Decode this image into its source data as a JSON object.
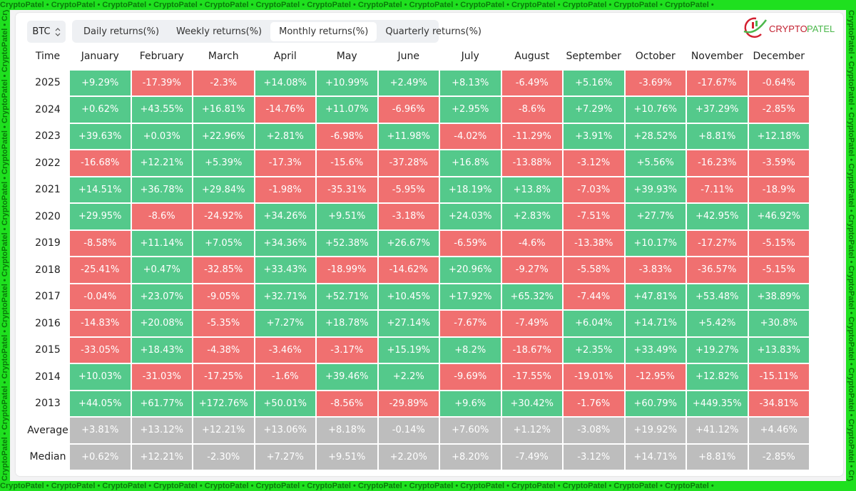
{
  "watermark": "CryptoPatel • CryptoPatel • CryptoPatel • CryptoPatel • CryptoPatel • CryptoPatel • CryptoPatel • CryptoPatel • CryptoPatel • CryptoPatel • CryptoPatel • CryptoPatel • CryptoPatel • CryptoPatel •",
  "asset": {
    "label": "BTC",
    "icon": "chevron-up-down-icon"
  },
  "tabs": [
    {
      "label": "Daily returns(%)"
    },
    {
      "label": "Weekly returns(%)"
    },
    {
      "label": "Monthly returns(%)",
      "active": true
    },
    {
      "label": "Quarterly returns(%)"
    }
  ],
  "colors": {
    "positive": "#54c98b",
    "negative": "#f07070",
    "summary": "#bdbdbd"
  },
  "table": {
    "headers": [
      "Time",
      "January",
      "February",
      "March",
      "April",
      "May",
      "June",
      "July",
      "August",
      "September",
      "October",
      "November",
      "December"
    ],
    "rows": [
      {
        "label": "2025",
        "values": [
          "+9.29%",
          "-17.39%",
          "-2.3%",
          "+14.08%",
          "+10.99%",
          "+2.49%",
          "+8.13%",
          "-6.49%",
          "+5.16%",
          "-3.69%",
          "-17.67%",
          "-0.64%"
        ]
      },
      {
        "label": "2024",
        "values": [
          "+0.62%",
          "+43.55%",
          "+16.81%",
          "-14.76%",
          "+11.07%",
          "-6.96%",
          "+2.95%",
          "-8.6%",
          "+7.29%",
          "+10.76%",
          "+37.29%",
          "-2.85%"
        ]
      },
      {
        "label": "2023",
        "values": [
          "+39.63%",
          "+0.03%",
          "+22.96%",
          "+2.81%",
          "-6.98%",
          "+11.98%",
          "-4.02%",
          "-11.29%",
          "+3.91%",
          "+28.52%",
          "+8.81%",
          "+12.18%"
        ]
      },
      {
        "label": "2022",
        "values": [
          "-16.68%",
          "+12.21%",
          "+5.39%",
          "-17.3%",
          "-15.6%",
          "-37.28%",
          "+16.8%",
          "-13.88%",
          "-3.12%",
          "+5.56%",
          "-16.23%",
          "-3.59%"
        ]
      },
      {
        "label": "2021",
        "values": [
          "+14.51%",
          "+36.78%",
          "+29.84%",
          "-1.98%",
          "-35.31%",
          "-5.95%",
          "+18.19%",
          "+13.8%",
          "-7.03%",
          "+39.93%",
          "-7.11%",
          "-18.9%"
        ]
      },
      {
        "label": "2020",
        "values": [
          "+29.95%",
          "-8.6%",
          "-24.92%",
          "+34.26%",
          "+9.51%",
          "-3.18%",
          "+24.03%",
          "+2.83%",
          "-7.51%",
          "+27.7%",
          "+42.95%",
          "+46.92%"
        ]
      },
      {
        "label": "2019",
        "values": [
          "-8.58%",
          "+11.14%",
          "+7.05%",
          "+34.36%",
          "+52.38%",
          "+26.67%",
          "-6.59%",
          "-4.6%",
          "-13.38%",
          "+10.17%",
          "-17.27%",
          "-5.15%"
        ]
      },
      {
        "label": "2018",
        "values": [
          "-25.41%",
          "+0.47%",
          "-32.85%",
          "+33.43%",
          "-18.99%",
          "-14.62%",
          "+20.96%",
          "-9.27%",
          "-5.58%",
          "-3.83%",
          "-36.57%",
          "-5.15%"
        ]
      },
      {
        "label": "2017",
        "values": [
          "-0.04%",
          "+23.07%",
          "-9.05%",
          "+32.71%",
          "+52.71%",
          "+10.45%",
          "+17.92%",
          "+65.32%",
          "-7.44%",
          "+47.81%",
          "+53.48%",
          "+38.89%"
        ]
      },
      {
        "label": "2016",
        "values": [
          "-14.83%",
          "+20.08%",
          "-5.35%",
          "+7.27%",
          "+18.78%",
          "+27.14%",
          "-7.67%",
          "-7.49%",
          "+6.04%",
          "+14.71%",
          "+5.42%",
          "+30.8%"
        ]
      },
      {
        "label": "2015",
        "values": [
          "-33.05%",
          "+18.43%",
          "-4.38%",
          "-3.46%",
          "-3.17%",
          "+15.19%",
          "+8.2%",
          "-18.67%",
          "+2.35%",
          "+33.49%",
          "+19.27%",
          "+13.83%"
        ]
      },
      {
        "label": "2014",
        "values": [
          "+10.03%",
          "-31.03%",
          "-17.25%",
          "-1.6%",
          "+39.46%",
          "+2.2%",
          "-9.69%",
          "-17.55%",
          "-19.01%",
          "-12.95%",
          "+12.82%",
          "-15.11%"
        ]
      },
      {
        "label": "2013",
        "values": [
          "+44.05%",
          "+61.77%",
          "+172.76%",
          "+50.01%",
          "-8.56%",
          "-29.89%",
          "+9.6%",
          "+30.42%",
          "-1.76%",
          "+60.79%",
          "+449.35%",
          "-34.81%"
        ]
      }
    ],
    "summary": [
      {
        "label": "Average",
        "values": [
          "+3.81%",
          "+13.12%",
          "+12.21%",
          "+13.06%",
          "+8.18%",
          "-0.14%",
          "+7.60%",
          "+1.12%",
          "-3.08%",
          "+19.92%",
          "+41.12%",
          "+4.46%"
        ]
      },
      {
        "label": "Median",
        "values": [
          "+0.62%",
          "+12.21%",
          "-2.30%",
          "+7.27%",
          "+9.51%",
          "+2.20%",
          "+8.20%",
          "-7.49%",
          "-3.12%",
          "+14.71%",
          "+8.81%",
          "-2.85%"
        ]
      }
    ]
  },
  "logo": {
    "text": "CryptoPatel"
  }
}
